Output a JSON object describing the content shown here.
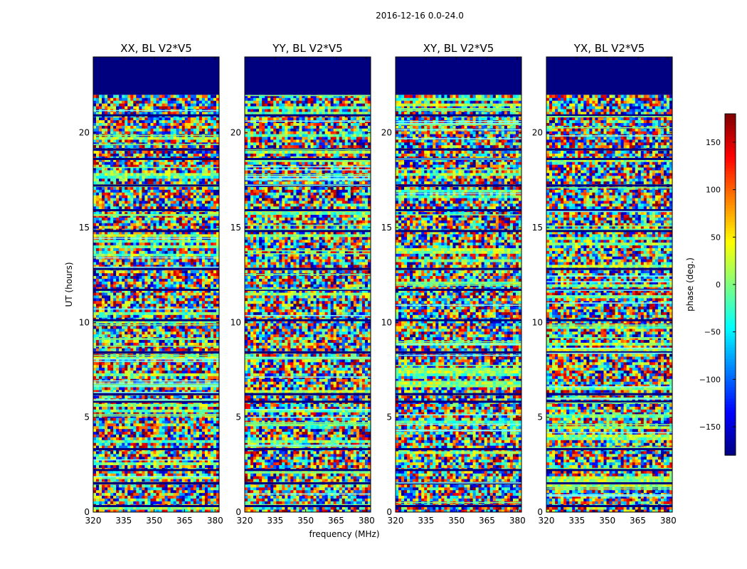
{
  "chart_data": {
    "type": "heatmap",
    "suptitle": "2016-12-16 0.0-24.0",
    "xlabel": "frequency (MHz)",
    "ylabel": "UT (hours)",
    "xlim": [
      320,
      382
    ],
    "ylim": [
      0,
      24
    ],
    "xticks": [
      "320",
      "335",
      "350",
      "365",
      "380"
    ],
    "xtick_values": [
      320,
      335,
      350,
      365,
      380
    ],
    "yticks": [
      "0",
      "5",
      "10",
      "15",
      "20"
    ],
    "ytick_values": [
      0,
      5,
      10,
      15,
      20
    ],
    "colormap": "jet",
    "colorbar": {
      "label": "phase (deg.)",
      "range": [
        -180,
        180
      ],
      "ticks": [
        "−150",
        "−100",
        "−50",
        "0",
        "50",
        "100",
        "150"
      ],
      "tick_values": [
        -150,
        -100,
        -50,
        0,
        50,
        100,
        150
      ]
    },
    "panels": [
      {
        "title": "XX, BL V2*V5",
        "blank_above_hours": 22
      },
      {
        "title": "YY, BL V2*V5",
        "blank_above_hours": 22
      },
      {
        "title": "XY, BL V2*V5",
        "blank_above_hours": 22
      },
      {
        "title": "YX, BL V2*V5",
        "blank_above_hours": 22
      }
    ],
    "flagged_hours": [
      0.3,
      1.5,
      2.2,
      3.3,
      5.8,
      6.2,
      8.4,
      10.1,
      11.7,
      12.8,
      14.8,
      15.9,
      17.2,
      18.6,
      19.1,
      20.9
    ]
  }
}
